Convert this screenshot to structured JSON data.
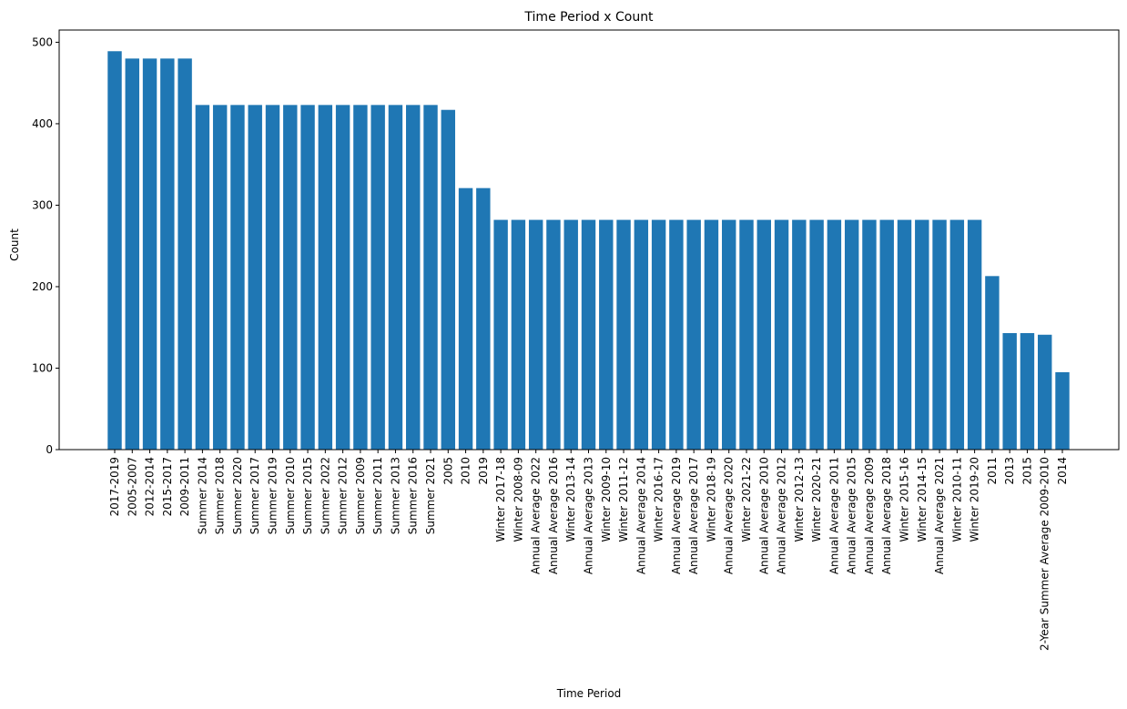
{
  "chart_data": {
    "type": "bar",
    "title": "Time Period x Count",
    "xlabel": "Time Period",
    "ylabel": "Count",
    "ylim": [
      0,
      515
    ],
    "yticks": [
      0,
      100,
      200,
      300,
      400,
      500
    ],
    "bar_color": "#1f77b4",
    "grid": false,
    "categories": [
      "2017-2019",
      "2005-2007",
      "2012-2014",
      "2015-2017",
      "2009-2011",
      "Summer 2014",
      "Summer 2018",
      "Summer 2020",
      "Summer 2017",
      "Summer 2019",
      "Summer 2010",
      "Summer 2015",
      "Summer 2022",
      "Summer 2012",
      "Summer 2009",
      "Summer 2011",
      "Summer 2013",
      "Summer 2016",
      "Summer 2021",
      "2005",
      "2010",
      "2019",
      "Winter 2017-18",
      "Winter 2008-09",
      "Annual Average 2022",
      "Annual Average 2016",
      "Winter 2013-14",
      "Annual Average 2013",
      "Winter 2009-10",
      "Winter 2011-12",
      "Annual Average 2014",
      "Winter 2016-17",
      "Annual Average 2019",
      "Annual Average 2017",
      "Winter 2018-19",
      "Annual Average 2020",
      "Winter 2021-22",
      "Annual Average 2010",
      "Annual Average 2012",
      "Winter 2012-13",
      "Winter 2020-21",
      "Annual Average 2011",
      "Annual Average 2015",
      "Annual Average 2009",
      "Annual Average 2018",
      "Winter 2015-16",
      "Winter 2014-15",
      "Annual Average 2021",
      "Winter 2010-11",
      "Winter 2019-20",
      "2011",
      "2013",
      "2015",
      "2-Year Summer Average 2009-2010",
      "2014"
    ],
    "values": [
      489,
      480,
      480,
      480,
      480,
      423,
      423,
      423,
      423,
      423,
      423,
      423,
      423,
      423,
      423,
      423,
      423,
      423,
      423,
      417,
      321,
      321,
      282,
      282,
      282,
      282,
      282,
      282,
      282,
      282,
      282,
      282,
      282,
      282,
      282,
      282,
      282,
      282,
      282,
      282,
      282,
      282,
      282,
      282,
      282,
      282,
      282,
      282,
      282,
      282,
      213,
      143,
      143,
      141,
      95
    ]
  }
}
